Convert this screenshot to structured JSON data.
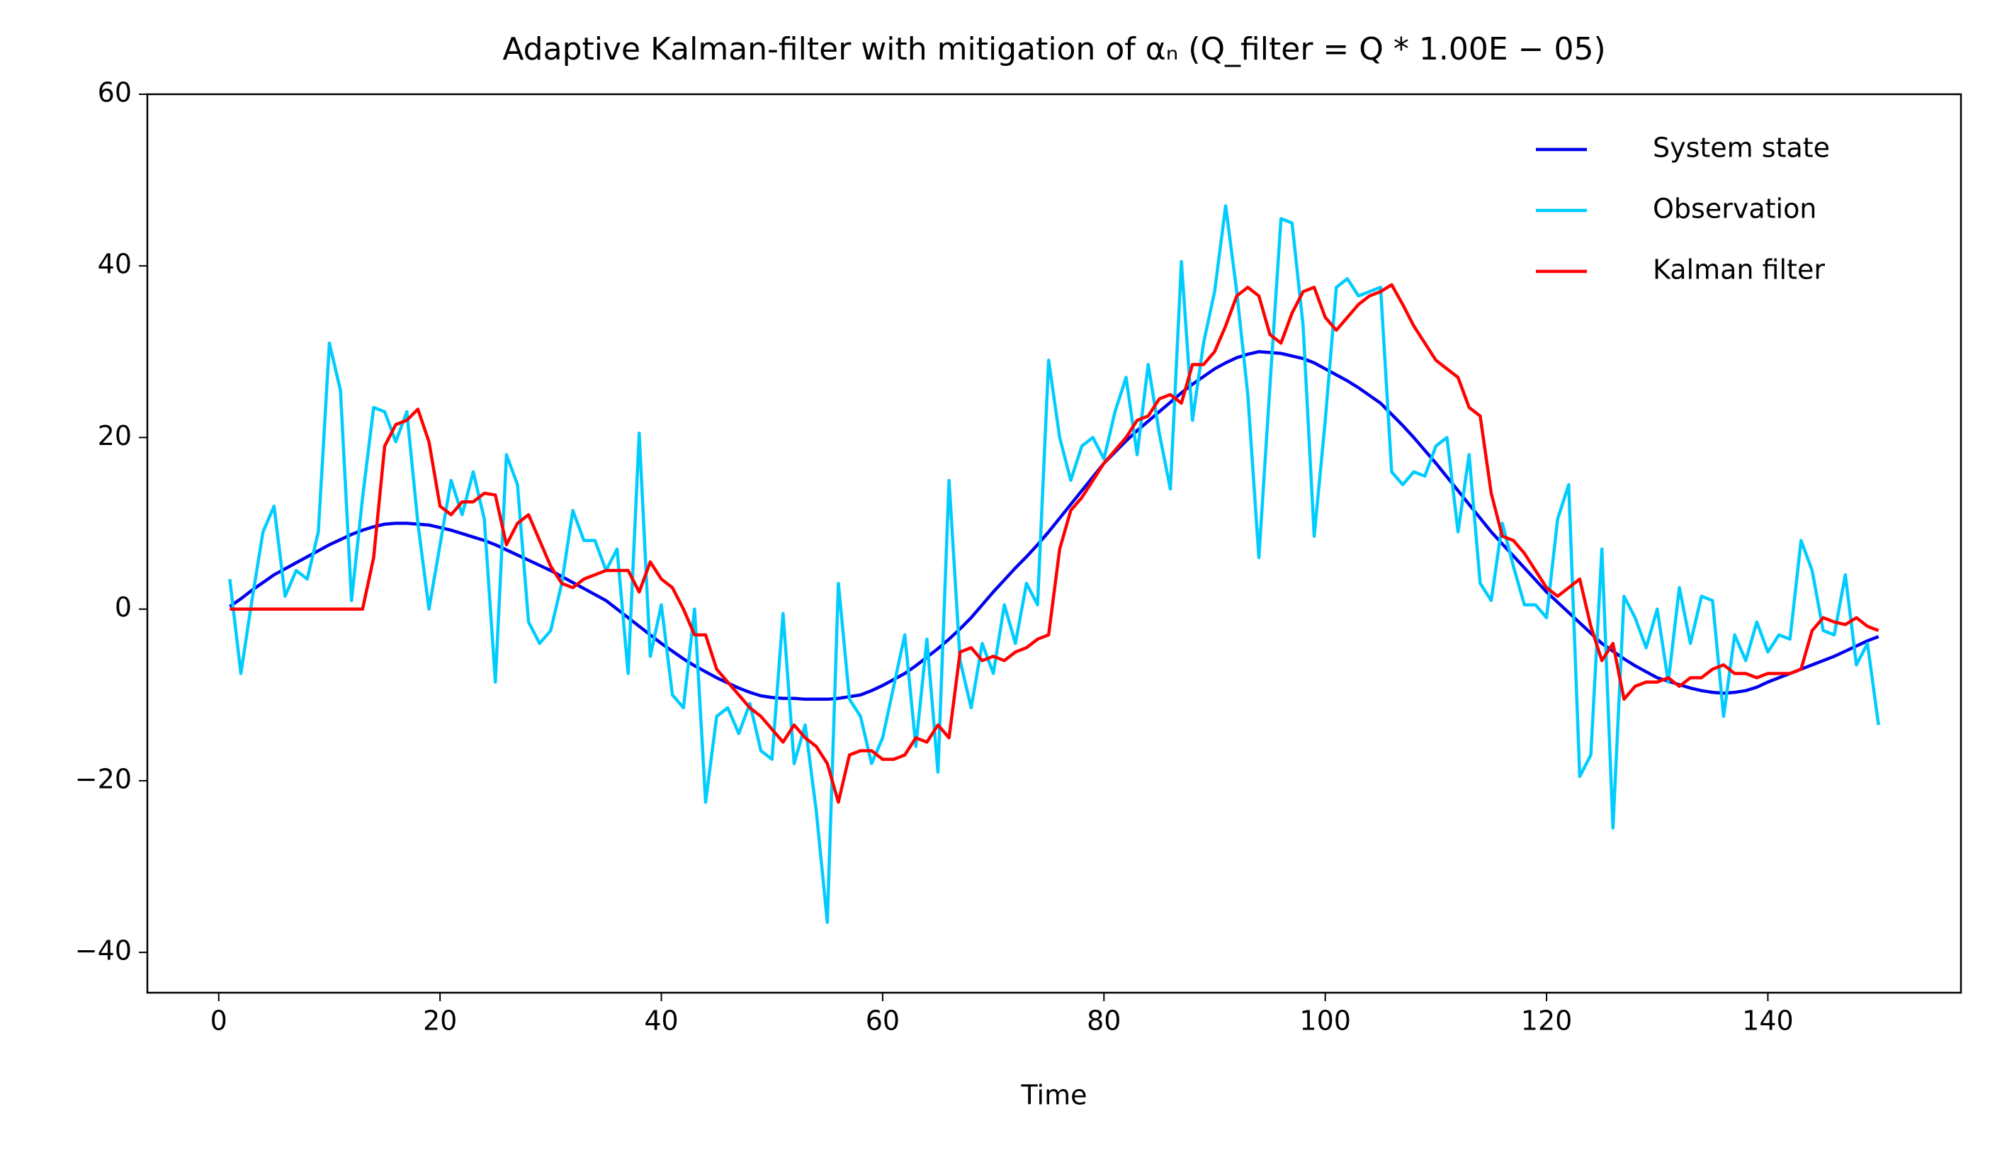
{
  "chart_data": {
    "type": "line",
    "title": "Adaptive Kalman-filter with mitigation of αₙ (Q_filter = Q * 1.00E − 05)",
    "xlabel": "Time",
    "x": [
      1,
      2,
      3,
      4,
      5,
      6,
      7,
      8,
      9,
      10,
      11,
      12,
      13,
      14,
      15,
      16,
      17,
      18,
      19,
      20,
      21,
      22,
      23,
      24,
      25,
      26,
      27,
      28,
      29,
      30,
      31,
      32,
      33,
      34,
      35,
      36,
      37,
      38,
      39,
      40,
      41,
      42,
      43,
      44,
      45,
      46,
      47,
      48,
      49,
      50,
      51,
      52,
      53,
      54,
      55,
      56,
      57,
      58,
      59,
      60,
      61,
      62,
      63,
      64,
      65,
      66,
      67,
      68,
      69,
      70,
      71,
      72,
      73,
      74,
      75,
      76,
      77,
      78,
      79,
      80,
      81,
      82,
      83,
      84,
      85,
      86,
      87,
      88,
      89,
      90,
      91,
      92,
      93,
      94,
      95,
      96,
      97,
      98,
      99,
      100,
      101,
      102,
      103,
      104,
      105,
      106,
      107,
      108,
      109,
      110,
      111,
      112,
      113,
      114,
      115,
      116,
      117,
      118,
      119,
      120,
      121,
      122,
      123,
      124,
      125,
      126,
      127,
      128,
      129,
      130,
      131,
      132,
      133,
      134,
      135,
      136,
      137,
      138,
      139,
      140,
      141,
      142,
      143,
      144,
      145,
      146,
      147,
      148,
      149,
      150
    ],
    "series": [
      {
        "name": "System state",
        "color": "#0000ee",
        "values": [
          0.3,
          1.2,
          2.2,
          3.1,
          4.0,
          4.7,
          5.4,
          6.1,
          6.8,
          7.5,
          8.1,
          8.7,
          9.2,
          9.6,
          9.9,
          10.0,
          10.0,
          9.9,
          9.8,
          9.5,
          9.2,
          8.8,
          8.4,
          8.0,
          7.5,
          6.9,
          6.3,
          5.7,
          5.1,
          4.5,
          3.8,
          3.1,
          2.4,
          1.7,
          1.0,
          0.0,
          -1.0,
          -2.0,
          -3.0,
          -4.0,
          -4.9,
          -5.8,
          -6.6,
          -7.3,
          -8.0,
          -8.6,
          -9.2,
          -9.7,
          -10.1,
          -10.3,
          -10.4,
          -10.4,
          -10.5,
          -10.5,
          -10.5,
          -10.4,
          -10.2,
          -10.0,
          -9.5,
          -8.9,
          -8.2,
          -7.5,
          -6.6,
          -5.6,
          -4.6,
          -3.5,
          -2.3,
          -1.0,
          0.5,
          2.0,
          3.4,
          4.8,
          6.1,
          7.5,
          9.0,
          10.6,
          12.2,
          13.8,
          15.4,
          17.0,
          18.3,
          19.6,
          20.8,
          21.9,
          23.0,
          24.1,
          25.2,
          26.2,
          27.1,
          28.0,
          28.7,
          29.3,
          29.7,
          30.0,
          29.9,
          29.8,
          29.5,
          29.2,
          28.7,
          28.0,
          27.3,
          26.6,
          25.8,
          24.9,
          24.0,
          22.7,
          21.4,
          20.0,
          18.5,
          17.0,
          15.4,
          13.8,
          12.2,
          10.6,
          9.0,
          7.6,
          6.2,
          4.8,
          3.4,
          2.0,
          0.8,
          -0.4,
          -1.6,
          -2.8,
          -4.0,
          -4.9,
          -5.8,
          -6.6,
          -7.3,
          -8.0,
          -8.4,
          -8.8,
          -9.2,
          -9.5,
          -9.7,
          -9.8,
          -9.7,
          -9.5,
          -9.1,
          -8.5,
          -8.0,
          -7.5,
          -7.0,
          -6.5,
          -6.0,
          -5.5,
          -4.9,
          -4.3,
          -3.7,
          -3.2
        ]
      },
      {
        "name": "Observation",
        "color": "#00ccff",
        "values": [
          3.5,
          -7.5,
          1,
          9,
          12,
          1.5,
          4.5,
          3.5,
          9,
          31,
          25.5,
          1,
          13,
          23.5,
          23,
          19.5,
          23,
          10,
          0,
          7.5,
          15,
          11,
          16,
          10.5,
          -8.5,
          18,
          14.5,
          -1.5,
          -4,
          -2.5,
          3,
          11.5,
          8,
          8,
          4.5,
          7,
          -7.5,
          20.5,
          -5.5,
          0.5,
          -10,
          -11.5,
          0,
          -22.5,
          -12.5,
          -11.5,
          -14.5,
          -11,
          -16.5,
          -17.5,
          -0.5,
          -18,
          -13.5,
          -23.5,
          -36.5,
          3,
          -10.5,
          -12.5,
          -18,
          -15,
          -9,
          -3,
          -16,
          -3.5,
          -19,
          15,
          -6,
          -11.5,
          -4,
          -7.5,
          0.5,
          -4,
          3,
          0.5,
          29,
          20,
          15,
          19,
          20,
          17.5,
          23,
          27,
          18,
          28.5,
          20.5,
          14,
          40.5,
          22,
          31,
          37,
          47,
          37,
          25,
          6,
          26,
          45.5,
          45,
          33,
          8.5,
          22,
          37.5,
          38.5,
          36.5,
          37,
          37.5,
          16,
          14.5,
          16,
          15.5,
          19,
          20,
          9,
          18,
          3,
          1,
          10,
          5,
          0.5,
          0.5,
          -1,
          10.5,
          14.5,
          -19.5,
          -17,
          7,
          -25.5,
          1.5,
          -1,
          -4.5,
          0,
          -8.5,
          2.5,
          -4,
          1.5,
          1,
          -12.5,
          -3,
          -6,
          -1.5,
          -5,
          -3,
          -3.5,
          8,
          4.5,
          -2.5,
          -3,
          4,
          -6.5,
          -4,
          -13.5
        ]
      },
      {
        "name": "Kalman filter",
        "color": "#ff0000",
        "values": [
          0,
          0,
          0,
          0,
          0,
          0,
          0,
          0,
          0,
          0,
          0,
          0,
          0,
          6,
          19,
          21.5,
          22,
          23.3,
          19.5,
          12,
          11,
          12.5,
          12.5,
          13.5,
          13.3,
          7.5,
          10,
          11,
          8,
          5,
          3,
          2.5,
          3.5,
          4,
          4.5,
          4.5,
          4.5,
          2,
          5.5,
          3.5,
          2.5,
          0,
          -3,
          -3,
          -7,
          -8.5,
          -10,
          -11.5,
          -12.5,
          -14,
          -15.5,
          -13.5,
          -15,
          -16,
          -18,
          -22.5,
          -17,
          -16.5,
          -16.5,
          -17.5,
          -17.5,
          -17,
          -15,
          -15.5,
          -13.5,
          -15,
          -5,
          -4.5,
          -6,
          -5.5,
          -6,
          -5,
          -4.5,
          -3.5,
          -3,
          7,
          11.5,
          13,
          15,
          17,
          18.5,
          20,
          22,
          22.5,
          24.5,
          25,
          24,
          28.5,
          28.5,
          30,
          33,
          36.5,
          37.5,
          36.5,
          32,
          31,
          34.5,
          37,
          37.5,
          34,
          32.5,
          34,
          35.5,
          36.5,
          37,
          37.8,
          35.5,
          33,
          31,
          29,
          28,
          27,
          23.5,
          22.5,
          13.5,
          8.5,
          8,
          6.5,
          4.5,
          2.5,
          1.5,
          2.5,
          3.5,
          -2,
          -6,
          -4,
          -10.5,
          -9,
          -8.5,
          -8.5,
          -8,
          -9,
          -8,
          -8,
          -7,
          -6.5,
          -7.5,
          -7.5,
          -8,
          -7.5,
          -7.5,
          -7.5,
          -7,
          -2.5,
          -1,
          -1.5,
          -1.8,
          -1,
          -2,
          -2.5
        ]
      }
    ],
    "xlim": [
      -6.45,
      157.45
    ],
    "ylim": [
      -44.7,
      60
    ],
    "xticks": [
      0,
      20,
      40,
      60,
      80,
      100,
      120,
      140
    ],
    "yticks": [
      {
        "value": -40,
        "label": "−40"
      },
      {
        "value": -20,
        "label": "−20"
      },
      0,
      20,
      40,
      60
    ],
    "legend": "upper right",
    "grid": false
  }
}
